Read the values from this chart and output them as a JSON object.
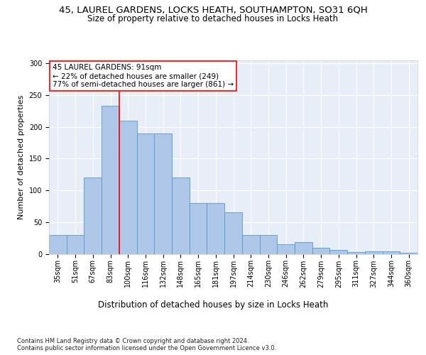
{
  "title_line1": "45, LAUREL GARDENS, LOCKS HEATH, SOUTHAMPTON, SO31 6QH",
  "title_line2": "Size of property relative to detached houses in Locks Heath",
  "xlabel": "Distribution of detached houses by size in Locks Heath",
  "ylabel": "Number of detached properties",
  "footnote": "Contains HM Land Registry data © Crown copyright and database right 2024.\nContains public sector information licensed under the Open Government Licence v3.0.",
  "bar_labels": [
    "35sqm",
    "51sqm",
    "67sqm",
    "83sqm",
    "100sqm",
    "116sqm",
    "132sqm",
    "148sqm",
    "165sqm",
    "181sqm",
    "197sqm",
    "214sqm",
    "230sqm",
    "246sqm",
    "262sqm",
    "279sqm",
    "295sqm",
    "311sqm",
    "327sqm",
    "344sqm",
    "360sqm"
  ],
  "bar_values": [
    30,
    30,
    120,
    233,
    210,
    190,
    190,
    120,
    80,
    80,
    65,
    30,
    30,
    15,
    18,
    10,
    6,
    3,
    4,
    4,
    2
  ],
  "bar_color": "#aec6e8",
  "bar_edge_color": "#5599cc",
  "vline_color": "red",
  "vline_position": 3.5,
  "annotation_title": "45 LAUREL GARDENS: 91sqm",
  "annotation_line2": "← 22% of detached houses are smaller (249)",
  "annotation_line3": "77% of semi-detached houses are larger (861) →",
  "ylim": [
    0,
    305
  ],
  "yticks": [
    0,
    50,
    100,
    150,
    200,
    250,
    300
  ],
  "bg_color": "#e8eef8",
  "title1_fontsize": 9.5,
  "title2_fontsize": 8.5,
  "xlabel_fontsize": 8.5,
  "ylabel_fontsize": 8,
  "tick_fontsize": 7,
  "annot_fontsize": 7.5,
  "footnote_fontsize": 6
}
